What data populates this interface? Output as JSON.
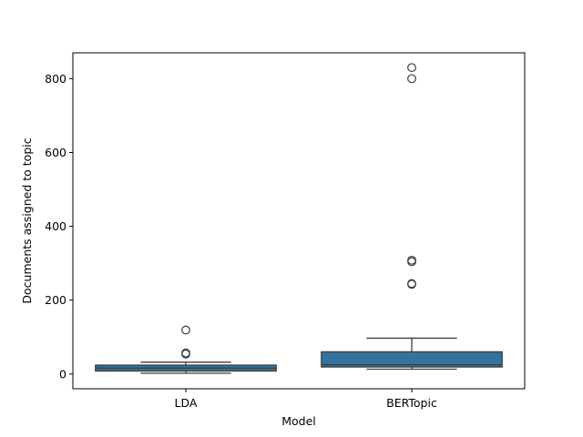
{
  "chart_data": {
    "type": "box",
    "title": "",
    "xlabel": "Model",
    "ylabel": "Documents assigned to topic",
    "categories": [
      "LDA",
      "BERTopic"
    ],
    "ylim": [
      -40,
      870
    ],
    "yticks": [
      0,
      200,
      400,
      600,
      800
    ],
    "grid": false,
    "box_color": "#3274a1",
    "line_color": "#3d3d3d",
    "boxes": [
      {
        "category": "LDA",
        "whisker_low": 2,
        "q1": 8,
        "median": 16,
        "q3": 24,
        "whisker_high": 32,
        "outliers": [
          54,
          57,
          119
        ]
      },
      {
        "category": "BERTopic",
        "whisker_low": 13,
        "q1": 19,
        "median": 25,
        "q3": 60,
        "whisker_high": 97,
        "outliers": [
          243,
          245,
          304,
          308,
          800,
          830
        ]
      }
    ]
  }
}
